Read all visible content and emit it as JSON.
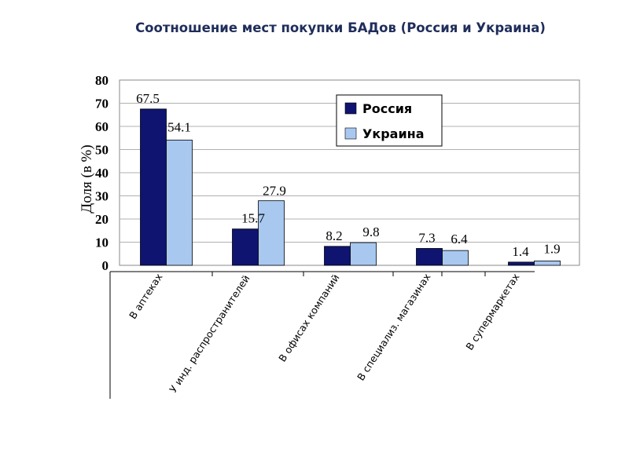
{
  "title": "Соотношение мест покупки БАДов (Россия и Украина)",
  "chart_data": {
    "type": "bar",
    "title": "Соотношение мест покупки БАДов (Россия и Украина)",
    "xlabel": "",
    "ylabel": "Доля (в %)",
    "ylim": [
      0,
      80
    ],
    "yticks": [
      0,
      10,
      20,
      30,
      40,
      50,
      60,
      70,
      80
    ],
    "categories": [
      "В аптеках",
      "У инд. распространителей",
      "В офисах компаний",
      "В специализ. магазинах",
      "В супермаркетах"
    ],
    "series": [
      {
        "name": "Россия",
        "values": [
          67.5,
          15.7,
          8.2,
          7.3,
          1.4
        ],
        "color": "#0f1470"
      },
      {
        "name": "Украина",
        "values": [
          54.1,
          27.9,
          9.8,
          6.4,
          1.9
        ],
        "color": "#a8c8f0"
      }
    ],
    "data_labels": [
      [
        "67.5",
        "15.7",
        "8.2",
        "7.3",
        "1.4"
      ],
      [
        "54.1",
        "27.9",
        "9.8",
        "6.4",
        "1.9"
      ]
    ],
    "grid": true,
    "legend": "top-right"
  }
}
